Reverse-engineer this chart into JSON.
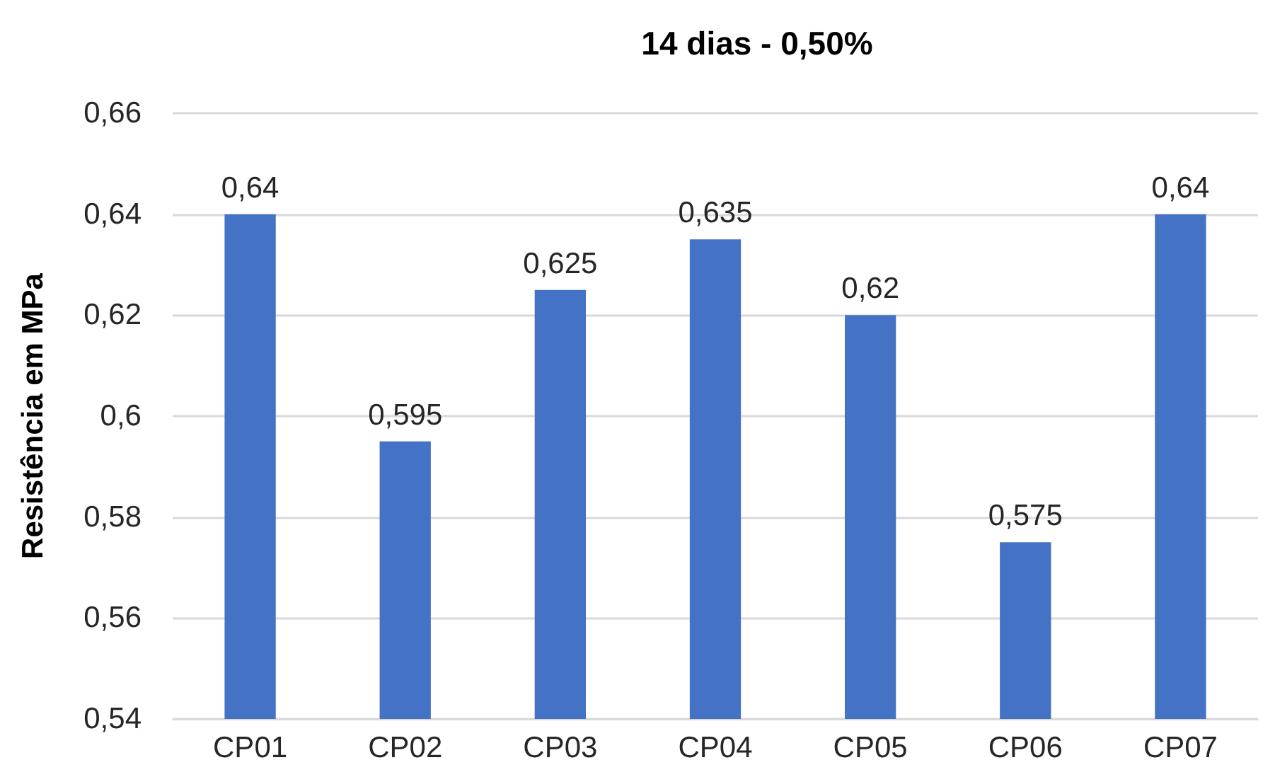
{
  "chart_data": {
    "type": "bar",
    "title": "14 dias - 0,50%",
    "ylabel": "Resistência em MPa",
    "categories": [
      "CP01",
      "CP02",
      "CP03",
      "CP04",
      "CP05",
      "CP06",
      "CP07"
    ],
    "values": [
      0.64,
      0.595,
      0.625,
      0.635,
      0.62,
      0.575,
      0.64
    ],
    "value_labels": [
      "0,64",
      "0,595",
      "0,625",
      "0,635",
      "0,62",
      "0,575",
      "0,64"
    ],
    "color": "#4472c4",
    "ylim": [
      0.54,
      0.66
    ],
    "yticks": [
      {
        "value": 0.54,
        "label": "0,54"
      },
      {
        "value": 0.56,
        "label": "0,56"
      },
      {
        "value": 0.58,
        "label": "0,58"
      },
      {
        "value": 0.6,
        "label": "0,6"
      },
      {
        "value": 0.62,
        "label": "0,62"
      },
      {
        "value": 0.64,
        "label": "0,64"
      },
      {
        "value": 0.66,
        "label": "0,66"
      }
    ],
    "grid": true
  }
}
